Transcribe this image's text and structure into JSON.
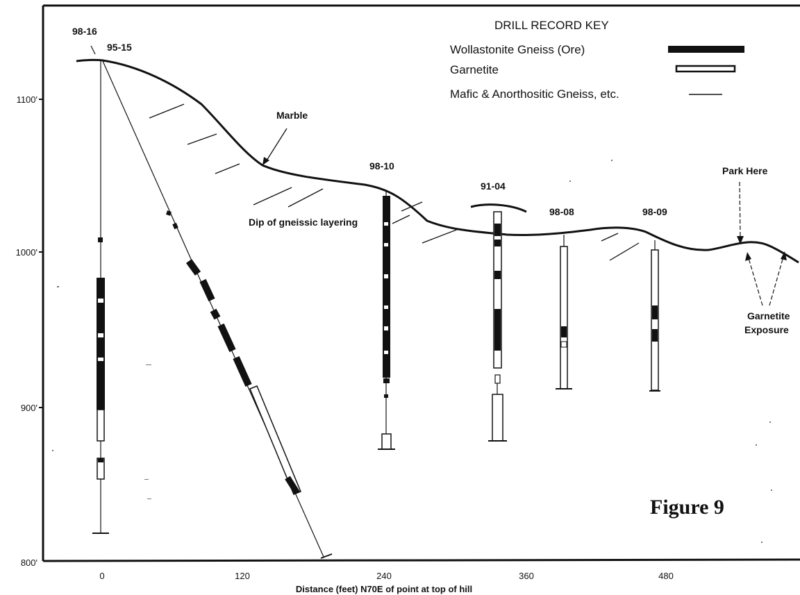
{
  "y_axis": {
    "ticks": [
      {
        "label": "1100'",
        "value": 1100
      },
      {
        "label": "1000'",
        "value": 1000
      },
      {
        "label": "900'",
        "value": 900
      },
      {
        "label": "800'",
        "value": 800
      }
    ]
  },
  "x_axis": {
    "title": "Distance (feet) N70E of point at top of hill",
    "ticks": [
      {
        "label": "0",
        "value": 0
      },
      {
        "label": "120",
        "value": 120
      },
      {
        "label": "240",
        "value": 240
      },
      {
        "label": "360",
        "value": 360
      },
      {
        "label": "480",
        "value": 480
      }
    ]
  },
  "key": {
    "title": "DRILL RECORD KEY",
    "items": [
      {
        "label": "Wollastonite Gneiss (Ore)",
        "symbol": "solid-bar"
      },
      {
        "label": "Garnetite",
        "symbol": "open-bar"
      },
      {
        "label": "Mafic & Anorthositic Gneiss, etc.",
        "symbol": "thin-line"
      }
    ]
  },
  "holes": {
    "h9816": "98-16",
    "h9515": "95-15",
    "h9810": "98-10",
    "h9104": "91-04",
    "h9808": "98-08",
    "h9809": "98-09"
  },
  "annotations": {
    "marble": "Marble",
    "dip": "Dip of gneissic layering",
    "park": "Park Here",
    "garnetite_exposure_line1": "Garnetite",
    "garnetite_exposure_line2": "Exposure"
  },
  "figure_label": "Figure 9",
  "colors": {
    "ink": "#111111",
    "background": "#ffffff"
  }
}
